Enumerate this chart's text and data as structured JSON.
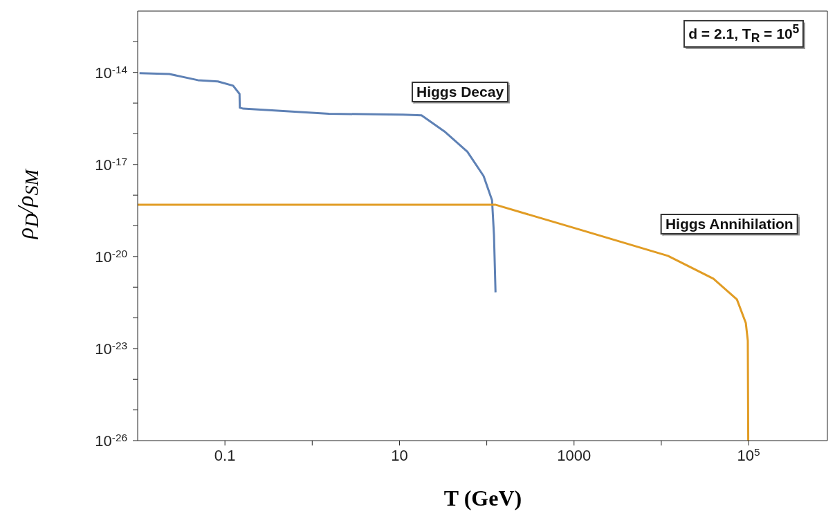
{
  "chart_data": {
    "type": "line",
    "xlabel": "T (GeV)",
    "ylabel": "ρ$_{D}$/ρ$_{SM}$",
    "log": "xy",
    "xlim": [
      0.01,
      800000
    ],
    "ylim": [
      1e-26,
      1e-12
    ],
    "xticks": [
      0.1,
      {
        "value": 1,
        "label": null
      },
      10,
      {
        "value": 100,
        "label": null
      },
      1000,
      {
        "value": 10000,
        "label": null
      },
      {
        "value": 100000,
        "label": "10$^{5}$"
      }
    ],
    "yticks": [
      {
        "value": 1e-26,
        "label": "10$^{-26}$"
      },
      {
        "value": 1e-25,
        "label": null
      },
      {
        "value": 1e-24,
        "label": null
      },
      {
        "value": 1e-23,
        "label": "10$^{-23}$"
      },
      {
        "value": 1e-22,
        "label": null
      },
      {
        "value": 1e-21,
        "label": null
      },
      {
        "value": 1e-20,
        "label": "10$^{-20}$"
      },
      {
        "value": 1e-19,
        "label": null
      },
      {
        "value": 1e-18,
        "label": null
      },
      {
        "value": 1e-17,
        "label": "10$^{-17}$"
      },
      {
        "value": 1e-16,
        "label": null
      },
      {
        "value": 1e-15,
        "label": null
      },
      {
        "value": 1e-14,
        "label": "10$^{-14}$"
      },
      {
        "value": 1e-13,
        "label": null
      }
    ],
    "marker": "none",
    "line_style": "solid",
    "annotations": [
      "d = 2.1, T$_{R}$ = 10$^{5}$"
    ],
    "series": [
      {
        "name": "Higgs Decay",
        "color": "#5e81b5",
        "x": [
          0.0105,
          0.023,
          0.049,
          0.083,
          0.124,
          0.147,
          0.148,
          0.162,
          1.56,
          11,
          17.9,
          32.7,
          60,
          92,
          115,
          121,
          126
        ],
        "values": [
          9.5e-15,
          8.9e-15,
          5.6e-15,
          5.1e-15,
          3.7e-15,
          2e-15,
          7.1e-16,
          6.6e-16,
          4.5e-16,
          4.2e-16,
          4e-16,
          1.2e-16,
          2.6e-17,
          4.2e-18,
          6.8e-19,
          5e-20,
          6.8e-22
        ]
      },
      {
        "name": "Higgs Annihilation",
        "color": "#e19c24",
        "x": [
          0.01,
          125,
          1040,
          11900,
          39500,
          73500,
          93000,
          98000,
          99100
        ],
        "values": [
          4.9e-19,
          4.9e-19,
          8.3e-20,
          1.05e-20,
          1.9e-21,
          4e-22,
          6.8e-23,
          1.8e-23,
          1e-26
        ]
      }
    ]
  }
}
